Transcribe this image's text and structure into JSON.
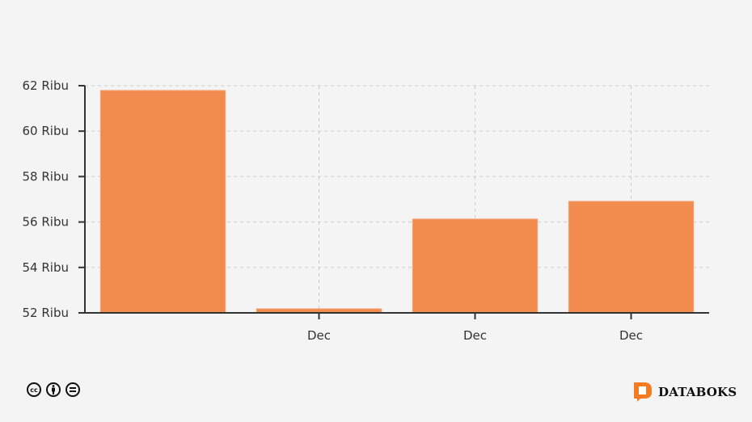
{
  "chart_data": {
    "type": "bar",
    "categories": [
      "",
      "Dec",
      "Dec",
      "Dec"
    ],
    "values": [
      61790,
      52180,
      56130,
      56910
    ],
    "ylim": [
      52000,
      62000
    ],
    "yticks": [
      52000,
      54000,
      56000,
      58000,
      60000,
      62000
    ],
    "ytick_labels": [
      "52 Ribu",
      "54 Ribu",
      "56 Ribu",
      "58 Ribu",
      "60 Ribu",
      "62 Ribu"
    ],
    "grid": true,
    "bar_color": "#f28b4e",
    "title": "",
    "xlabel": "",
    "ylabel": ""
  },
  "footer": {
    "license_icons": [
      "cc-icon",
      "by-icon",
      "nd-icon"
    ],
    "license_cc_text": "cc",
    "brand": "DATABOKS",
    "brand_color": "#f47b20"
  }
}
